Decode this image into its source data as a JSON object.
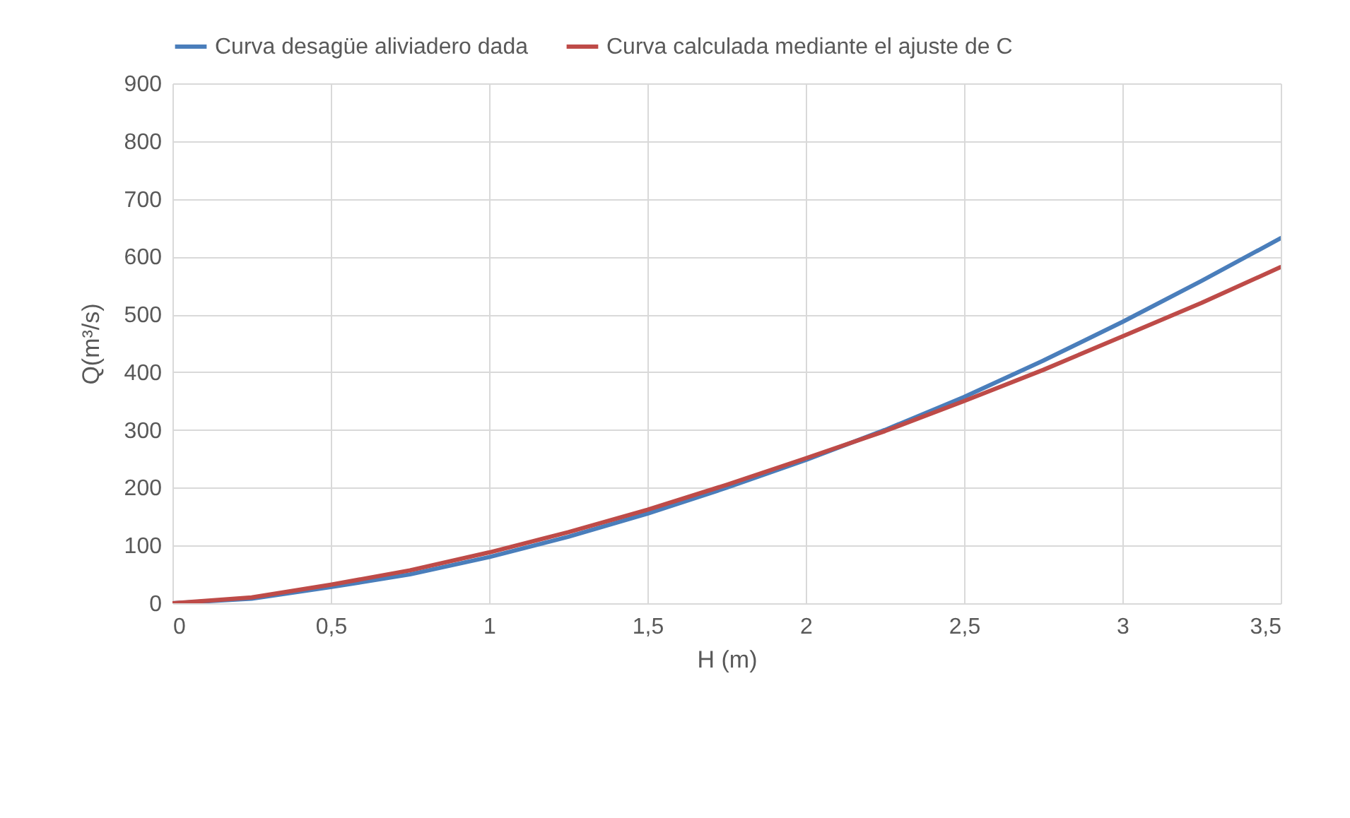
{
  "chart_data": {
    "type": "line",
    "xlabel": "H (m)",
    "ylabel": "Q(m³/s)",
    "x": [
      0,
      0.25,
      0.5,
      0.75,
      1,
      1.25,
      1.5,
      1.75,
      2,
      2.25,
      2.5,
      2.75,
      3,
      3.25,
      3.5
    ],
    "series": [
      {
        "name": "Curva desagüe aliviadero dada",
        "color": "#4a7ebb",
        "values": [
          0,
          8,
          28,
          50,
          80,
          115,
          155,
          200,
          248,
          300,
          357,
          420,
          487,
          558,
          632
        ]
      },
      {
        "name": "Curva calculada mediante el ajuste de C",
        "color": "#be4b48",
        "values": [
          0,
          10,
          32,
          57,
          88,
          123,
          162,
          205,
          251,
          298,
          350,
          404,
          462,
          520,
          582
        ]
      }
    ],
    "xlim": [
      0,
      3.5
    ],
    "xticks": [
      0,
      {
        "value": 0.5,
        "label": "0,5"
      },
      1,
      {
        "value": 1.5,
        "label": "1,5"
      },
      2,
      {
        "value": 2.5,
        "label": "2,5"
      },
      3,
      {
        "value": 3.5,
        "label": "3,5"
      }
    ],
    "ylim": [
      0,
      900
    ],
    "yticks": [
      0,
      100,
      200,
      300,
      400,
      500,
      600,
      700,
      800,
      900
    ],
    "grid": true,
    "legend": "top",
    "marker": "none",
    "line_style": "solid"
  }
}
